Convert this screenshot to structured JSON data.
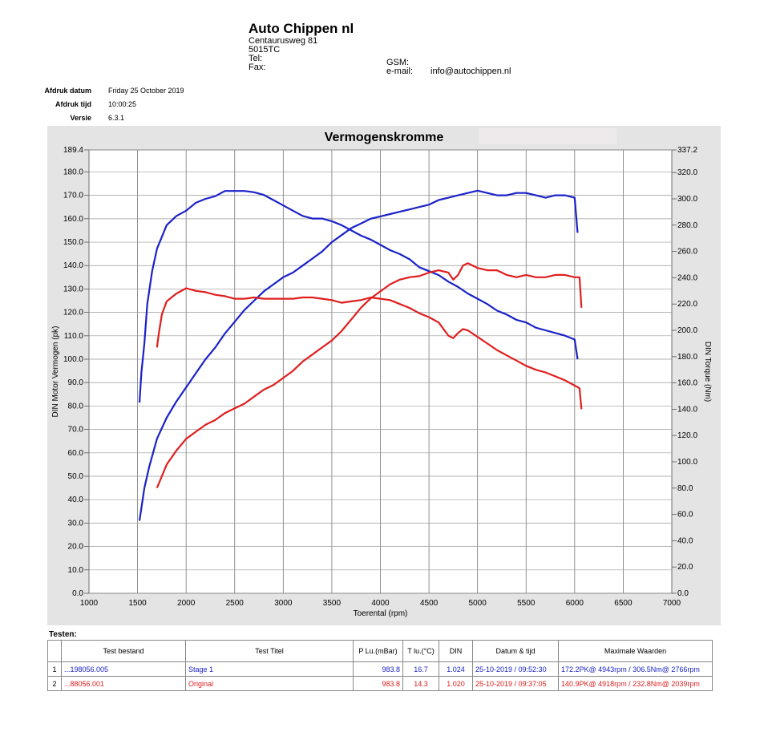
{
  "header": {
    "company": "Auto Chippen nl",
    "street": "Centaurusweg 81",
    "postcode": "5015TC",
    "tel_label": "Tel:",
    "fax_label": "Fax:",
    "gsm_label": "GSM:",
    "email_label": "e-mail:",
    "email": "info@autochippen.nl"
  },
  "meta": {
    "date_label": "Afdruk datum",
    "date": "Friday 25 October 2019",
    "time_label": "Afdruk tijd",
    "time": "10:00:25",
    "version_label": "Versie",
    "version": "6.3.1"
  },
  "chart_data": {
    "type": "line",
    "title": "Vermogenskromme",
    "xlabel": "Toerental (rpm)",
    "ylabel": "DIN Motor Vermogen (pk)",
    "y2label": "DIN Torque (Nm)",
    "xlim": [
      1000,
      7000
    ],
    "ylim": [
      0,
      189.4
    ],
    "y2lim": [
      0,
      337.2
    ],
    "xticks": [
      1000,
      1500,
      2000,
      2500,
      3000,
      3500,
      4000,
      4500,
      5000,
      5500,
      6000,
      6500,
      7000
    ],
    "yticks": [
      "0.0",
      "10.0",
      "20.0",
      "30.0",
      "40.0",
      "50.0",
      "60.0",
      "70.0",
      "80.0",
      "90.0",
      "100.0",
      "110.0",
      "120.0",
      "130.0",
      "140.0",
      "150.0",
      "160.0",
      "170.0",
      "180.0",
      "189.4"
    ],
    "y2ticks": [
      "0.0",
      "20.0",
      "40.0",
      "60.0",
      "80.0",
      "100.0",
      "120.0",
      "140.0",
      "160.0",
      "180.0",
      "200.0",
      "220.0",
      "240.0",
      "260.0",
      "280.0",
      "300.0",
      "320.0",
      "337.2"
    ],
    "grid": true,
    "colors": {
      "blue": "#1a22c8",
      "red": "#e01e1e",
      "panel": "#e4e4e4"
    },
    "series": [
      {
        "color": "blue",
        "kind": "power",
        "x": [
          1520,
          1570,
          1620,
          1700,
          1800,
          1900,
          2000,
          2100,
          2200,
          2300,
          2400,
          2500,
          2600,
          2700,
          2800,
          2900,
          3000,
          3100,
          3200,
          3300,
          3400,
          3500,
          3600,
          3700,
          3800,
          3900,
          4000,
          4100,
          4200,
          4300,
          4400,
          4500,
          4600,
          4700,
          4800,
          4900,
          5000,
          5100,
          5200,
          5300,
          5400,
          5500,
          5600,
          5700,
          5800,
          5900,
          6000,
          6030
        ],
        "y": [
          31,
          45,
          54,
          66,
          75,
          82,
          88,
          94,
          100,
          105,
          111,
          116,
          121,
          125,
          129,
          132,
          135,
          137,
          140,
          143,
          146,
          150,
          153,
          156,
          158,
          160,
          161,
          162,
          163,
          164,
          165,
          166,
          168,
          169,
          170,
          171,
          172,
          171,
          170,
          170,
          171,
          171,
          170,
          169,
          170,
          170,
          169,
          154
        ]
      },
      {
        "color": "blue",
        "kind": "torque",
        "x": [
          1520,
          1540,
          1570,
          1600,
          1650,
          1700,
          1800,
          1900,
          2000,
          2100,
          2200,
          2300,
          2400,
          2500,
          2600,
          2700,
          2800,
          2900,
          3000,
          3100,
          3200,
          3300,
          3400,
          3500,
          3600,
          3700,
          3800,
          3900,
          4000,
          4100,
          4200,
          4300,
          4400,
          4500,
          4600,
          4700,
          4800,
          4900,
          5000,
          5100,
          5200,
          5300,
          5400,
          5500,
          5600,
          5700,
          5800,
          5900,
          6000,
          6030
        ],
        "y": [
          145,
          168,
          190,
          220,
          245,
          262,
          280,
          287,
          291,
          297,
          300,
          302,
          306,
          306,
          306,
          305,
          303,
          299,
          295,
          291,
          287,
          285,
          285,
          283,
          280,
          276,
          272,
          269,
          265,
          261,
          258,
          254,
          248,
          245,
          242,
          237,
          233,
          228,
          224,
          220,
          215,
          212,
          208,
          206,
          202,
          200,
          198,
          196,
          193,
          178
        ]
      },
      {
        "color": "red",
        "kind": "power",
        "x": [
          1700,
          1750,
          1800,
          1900,
          2000,
          2100,
          2200,
          2300,
          2400,
          2500,
          2600,
          2700,
          2800,
          2900,
          3000,
          3100,
          3200,
          3300,
          3400,
          3500,
          3600,
          3700,
          3800,
          3900,
          4000,
          4100,
          4200,
          4300,
          4400,
          4500,
          4600,
          4700,
          4750,
          4800,
          4850,
          4900,
          5000,
          5100,
          5200,
          5300,
          5400,
          5500,
          5600,
          5700,
          5800,
          5900,
          6000,
          6050,
          6070
        ],
        "y": [
          45,
          50,
          55,
          61,
          66,
          69,
          72,
          74,
          77,
          79,
          81,
          84,
          87,
          89,
          92,
          95,
          99,
          102,
          105,
          108,
          112,
          117,
          122,
          126,
          129,
          132,
          134,
          135,
          135.5,
          137,
          138,
          137,
          134,
          136,
          140,
          141,
          139,
          138,
          138,
          136,
          135,
          136,
          135,
          135,
          136,
          136,
          135,
          135,
          122
        ]
      },
      {
        "color": "red",
        "kind": "torque",
        "x": [
          1700,
          1720,
          1750,
          1800,
          1900,
          2000,
          2100,
          2200,
          2300,
          2400,
          2500,
          2600,
          2700,
          2800,
          2900,
          3000,
          3100,
          3200,
          3300,
          3400,
          3500,
          3600,
          3700,
          3800,
          3900,
          4000,
          4100,
          4200,
          4300,
          4400,
          4500,
          4600,
          4700,
          4750,
          4800,
          4850,
          4900,
          5000,
          5100,
          5200,
          5300,
          5400,
          5500,
          5600,
          5700,
          5800,
          5900,
          6000,
          6050,
          6070
        ],
        "y": [
          187,
          198,
          212,
          222,
          228,
          232,
          230,
          229,
          227,
          226,
          224,
          224,
          225,
          224,
          224,
          224,
          224,
          225,
          225,
          224,
          223,
          221,
          222,
          223,
          225,
          224,
          223,
          220,
          217,
          213,
          210,
          206,
          196,
          194,
          198,
          201,
          200,
          195,
          190,
          185,
          181,
          177,
          173,
          170,
          168,
          165,
          162,
          158,
          156,
          140
        ]
      }
    ]
  },
  "tests": {
    "label": "Testen:",
    "headers": [
      "",
      "Test bestand",
      "Test Titel",
      "P Lu.(mBar)",
      "T lu.(°C)",
      "DIN",
      "Datum & tijd",
      "Maximale Waarden"
    ],
    "rows": [
      {
        "no": "1",
        "file": "...198056.005",
        "title": "Stage 1",
        "p": "983.8",
        "t": "16.7",
        "din": "1.024",
        "date": "25-10-2019 / 09:52:30",
        "max": "172.2PK@ 4943rpm / 306.5Nm@ 2766rpm"
      },
      {
        "no": "2",
        "file": "...88056.001",
        "title": "Original",
        "p": "983.8",
        "t": "14.3",
        "din": "1.020",
        "date": "25-10-2019 / 09:37:05",
        "max": "140.9PK@ 4918rpm / 232.8Nm@ 2039rpm"
      }
    ]
  }
}
